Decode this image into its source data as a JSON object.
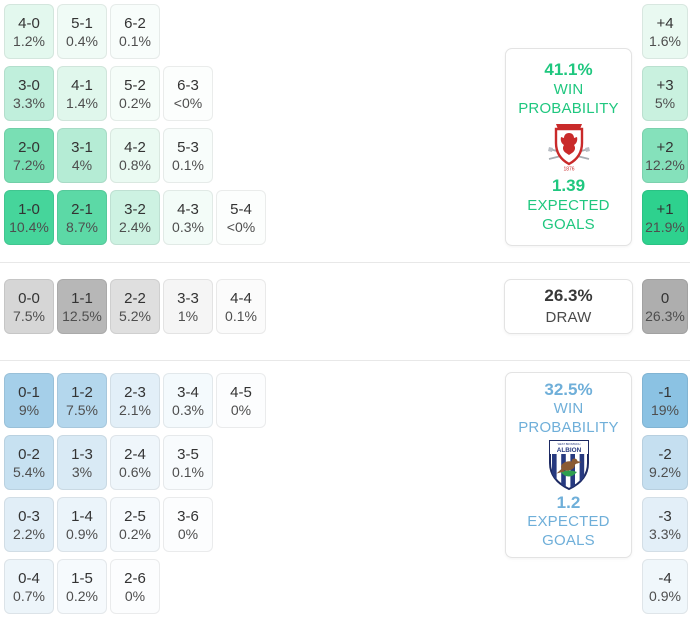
{
  "theme": {
    "home_accent": "#1fc77f",
    "away_accent": "#6fafd9",
    "background": "#ffffff",
    "divider": "#e8e8e8"
  },
  "labels": {
    "win_line1": "WIN",
    "win_line2": "PROBABILITY",
    "eg_line1": "EXPECTED",
    "eg_line2": "GOALS",
    "draw": "DRAW"
  },
  "icons": {
    "home_crest": "middlesbrough-crest-icon",
    "away_crest": "west-bromwich-albion-crest-icon",
    "away_crest_text_small": "WEST BROMWICH",
    "away_crest_text": "ALBION",
    "home_crest_year": "1876"
  },
  "chart_data": {
    "type": "heatmap",
    "home": {
      "win_probability": "41.1%",
      "expected_goals": "1.39"
    },
    "draw": {
      "probability": "26.3%"
    },
    "away": {
      "win_probability": "32.5%",
      "expected_goals": "1.2"
    },
    "home_score_rows": [
      [
        {
          "score": "4-0",
          "pct": "1.2%",
          "color": "#e3f8ee"
        },
        {
          "score": "5-1",
          "pct": "0.4%",
          "color": "#f0fbf6"
        },
        {
          "score": "6-2",
          "pct": "0.1%",
          "color": "#f8fdfb"
        }
      ],
      [
        {
          "score": "3-0",
          "pct": "3.3%",
          "color": "#c0efdc"
        },
        {
          "score": "4-1",
          "pct": "1.4%",
          "color": "#e0f7ec"
        },
        {
          "score": "5-2",
          "pct": "0.2%",
          "color": "#f5fdf9"
        },
        {
          "score": "6-3",
          "pct": "<0%",
          "color": "#fcfefd"
        }
      ],
      [
        {
          "score": "2-0",
          "pct": "7.2%",
          "color": "#79dfb4"
        },
        {
          "score": "3-1",
          "pct": "4%",
          "color": "#b5ecd5"
        },
        {
          "score": "4-2",
          "pct": "0.8%",
          "color": "#eafaf2"
        },
        {
          "score": "5-3",
          "pct": "0.1%",
          "color": "#f8fdfb"
        }
      ],
      [
        {
          "score": "1-0",
          "pct": "10.4%",
          "color": "#46d59b"
        },
        {
          "score": "2-1",
          "pct": "8.7%",
          "color": "#5cd9a6"
        },
        {
          "score": "3-2",
          "pct": "2.4%",
          "color": "#cdf2e2"
        },
        {
          "score": "4-3",
          "pct": "0.3%",
          "color": "#f3fcf8"
        },
        {
          "score": "5-4",
          "pct": "<0%",
          "color": "#fcfefd"
        }
      ]
    ],
    "draw_score_row": [
      {
        "score": "0-0",
        "pct": "7.5%",
        "color": "#d6d6d6"
      },
      {
        "score": "1-1",
        "pct": "12.5%",
        "color": "#b7b7b7"
      },
      {
        "score": "2-2",
        "pct": "5.2%",
        "color": "#dfdfdf"
      },
      {
        "score": "3-3",
        "pct": "1%",
        "color": "#f5f5f5"
      },
      {
        "score": "4-4",
        "pct": "0.1%",
        "color": "#fbfbfb"
      }
    ],
    "away_score_rows": [
      [
        {
          "score": "0-1",
          "pct": "9%",
          "color": "#a5cfe9"
        },
        {
          "score": "1-2",
          "pct": "7.5%",
          "color": "#b4d7ed"
        },
        {
          "score": "2-3",
          "pct": "2.1%",
          "color": "#e2eff8"
        },
        {
          "score": "3-4",
          "pct": "0.3%",
          "color": "#f4fafd"
        },
        {
          "score": "4-5",
          "pct": "0%",
          "color": "#fcfdfe"
        }
      ],
      [
        {
          "score": "0-2",
          "pct": "5.4%",
          "color": "#c7e1f1"
        },
        {
          "score": "1-3",
          "pct": "3%",
          "color": "#d9eaf5"
        },
        {
          "score": "2-4",
          "pct": "0.6%",
          "color": "#eff6fb"
        },
        {
          "score": "3-5",
          "pct": "0.1%",
          "color": "#f8fbfd"
        }
      ],
      [
        {
          "score": "0-3",
          "pct": "2.2%",
          "color": "#e1eef7"
        },
        {
          "score": "1-4",
          "pct": "0.9%",
          "color": "#ebf4fa"
        },
        {
          "score": "2-5",
          "pct": "0.2%",
          "color": "#f6fafd"
        },
        {
          "score": "3-6",
          "pct": "0%",
          "color": "#fcfdfe"
        }
      ],
      [
        {
          "score": "0-4",
          "pct": "0.7%",
          "color": "#edf5fa"
        },
        {
          "score": "1-5",
          "pct": "0.2%",
          "color": "#f6fafd"
        },
        {
          "score": "2-6",
          "pct": "0%",
          "color": "#fcfdfe"
        }
      ]
    ],
    "home_goal_diff": [
      {
        "diff": "+4",
        "pct": "1.6%",
        "color": "#e9f9f1"
      },
      {
        "diff": "+3",
        "pct": "5%",
        "color": "#c9f1df"
      },
      {
        "diff": "+2",
        "pct": "12.2%",
        "color": "#85e1bb"
      },
      {
        "diff": "+1",
        "pct": "21.9%",
        "color": "#2ed18e"
      }
    ],
    "draw_goal_diff": {
      "diff": "0",
      "pct": "26.3%",
      "color": "#aeaeae"
    },
    "away_goal_diff": [
      {
        "diff": "-1",
        "pct": "19%",
        "color": "#8bc2e3"
      },
      {
        "diff": "-2",
        "pct": "9.2%",
        "color": "#c5dff0"
      },
      {
        "diff": "-3",
        "pct": "3.3%",
        "color": "#e3eff8"
      },
      {
        "diff": "-4",
        "pct": "0.9%",
        "color": "#f0f7fb"
      }
    ]
  }
}
